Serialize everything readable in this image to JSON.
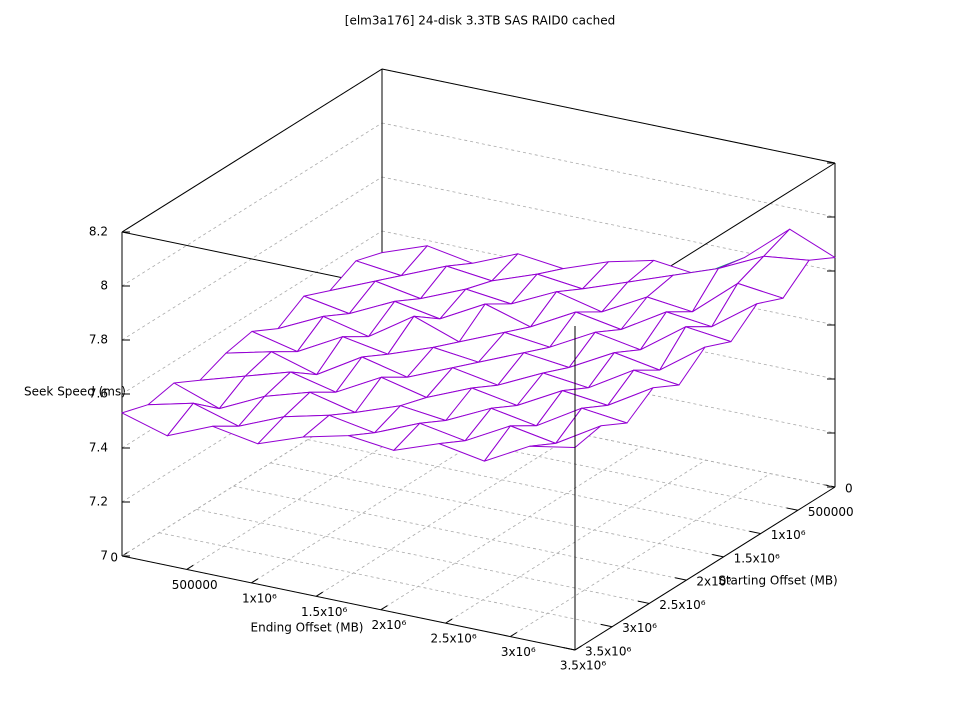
{
  "chart_data": {
    "type": "surface3d",
    "title": "[elm3a176] 24-disk 3.3TB SAS RAID0 cached",
    "x_label": "Ending Offset (MB)",
    "y_label": "Starting Offset (MB)",
    "z_label": "Seek Speed (ms)",
    "top_color": "#9400d3",
    "bottom_color": "#009e73",
    "grid": true,
    "xlim": [
      0,
      3500000
    ],
    "ylim": [
      0,
      3500000
    ],
    "zlim": [
      7,
      8.2
    ],
    "xticks": [
      0,
      500000,
      {
        "value": 1000000,
        "label": "1x10⁶"
      },
      {
        "value": 1500000,
        "label": "1.5x10⁶"
      },
      {
        "value": 2000000,
        "label": "2x10⁶"
      },
      {
        "value": 2500000,
        "label": "2.5x10⁶"
      },
      {
        "value": 3000000,
        "label": "3x10⁶"
      },
      {
        "value": 3500000,
        "label": "3.5x10⁶"
      }
    ],
    "yticks": [
      0,
      500000,
      {
        "value": 1000000,
        "label": "1x10⁶"
      },
      {
        "value": 1500000,
        "label": "1.5x10⁶"
      },
      {
        "value": 2000000,
        "label": "2x10⁶"
      },
      {
        "value": 2500000,
        "label": "2.5x10⁶"
      },
      {
        "value": 3000000,
        "label": "3x10⁶"
      },
      {
        "value": 3500000,
        "label": "3.5x10⁶"
      }
    ],
    "zticks": [
      7,
      7.2,
      7.4,
      7.6,
      7.8,
      8,
      8.2
    ],
    "x": [
      0,
      350000,
      700000,
      1050000,
      1400000,
      1750000,
      2100000,
      2450000,
      2800000,
      3150000,
      3500000
    ],
    "y": [
      0,
      350000,
      700000,
      1050000,
      1400000,
      1750000,
      2100000,
      2450000,
      2800000,
      3150000,
      3500000
    ],
    "z": [
      [
        7.52,
        7.58,
        7.55,
        7.62,
        7.6,
        7.66,
        7.7,
        7.68,
        7.78,
        7.92,
        7.85
      ],
      [
        7.55,
        7.53,
        7.6,
        7.58,
        7.64,
        7.62,
        7.68,
        7.74,
        7.8,
        7.88,
        7.9
      ],
      [
        7.5,
        7.57,
        7.54,
        7.61,
        7.59,
        7.67,
        7.63,
        7.72,
        7.7,
        7.84,
        7.82
      ],
      [
        7.54,
        7.51,
        7.59,
        7.56,
        7.65,
        7.6,
        7.69,
        7.66,
        7.76,
        7.74,
        7.86
      ],
      [
        7.48,
        7.56,
        7.52,
        7.63,
        7.57,
        7.64,
        7.62,
        7.71,
        7.68,
        7.8,
        7.78
      ],
      [
        7.53,
        7.49,
        7.58,
        7.55,
        7.61,
        7.59,
        7.66,
        7.64,
        7.73,
        7.7,
        7.82
      ],
      [
        7.51,
        7.55,
        7.5,
        7.6,
        7.56,
        7.63,
        7.6,
        7.68,
        7.66,
        7.76,
        7.74
      ],
      [
        7.47,
        7.52,
        7.57,
        7.53,
        7.62,
        7.58,
        7.65,
        7.62,
        7.71,
        7.69,
        7.79
      ],
      [
        7.52,
        7.46,
        7.54,
        7.59,
        7.55,
        7.61,
        7.59,
        7.67,
        7.64,
        7.74,
        7.72
      ],
      [
        7.5,
        7.54,
        7.49,
        7.56,
        7.6,
        7.57,
        7.64,
        7.61,
        7.7,
        7.67,
        7.77
      ],
      [
        7.53,
        7.48,
        7.55,
        7.52,
        7.58,
        7.62,
        7.6,
        7.66,
        7.63,
        7.72,
        7.75
      ]
    ]
  }
}
